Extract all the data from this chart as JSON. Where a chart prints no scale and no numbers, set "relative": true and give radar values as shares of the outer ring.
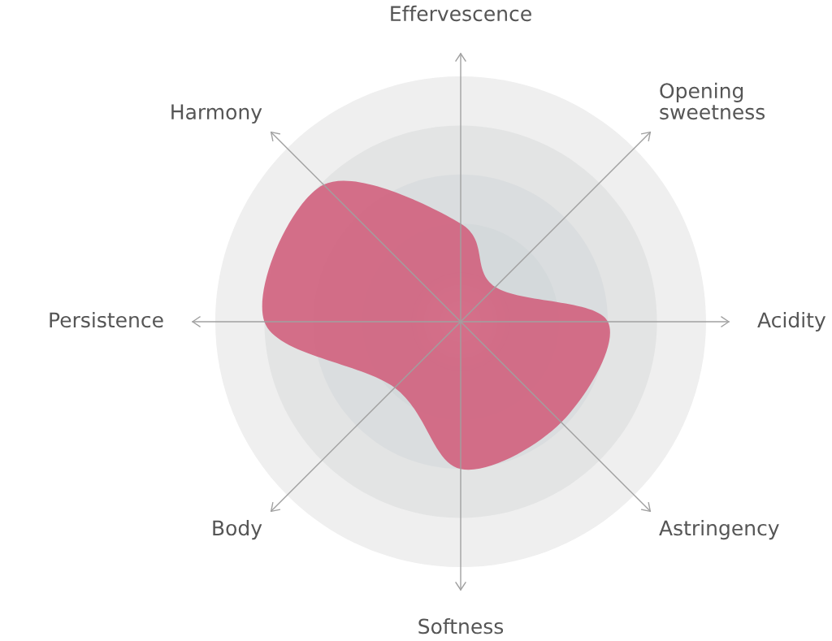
{
  "chart_data": {
    "type": "radar",
    "relative": true,
    "grid": true,
    "categories": [
      "Effervescence",
      "Opening\nsweetness",
      "Acidity",
      "Astringency",
      "Softness",
      "Body",
      "Persistence",
      "Harmony"
    ],
    "series": [
      {
        "color": "#d0607d",
        "values": [
          0.4,
          0.2,
          0.6,
          0.58,
          0.6,
          0.38,
          0.8,
          0.79
        ]
      }
    ]
  }
}
